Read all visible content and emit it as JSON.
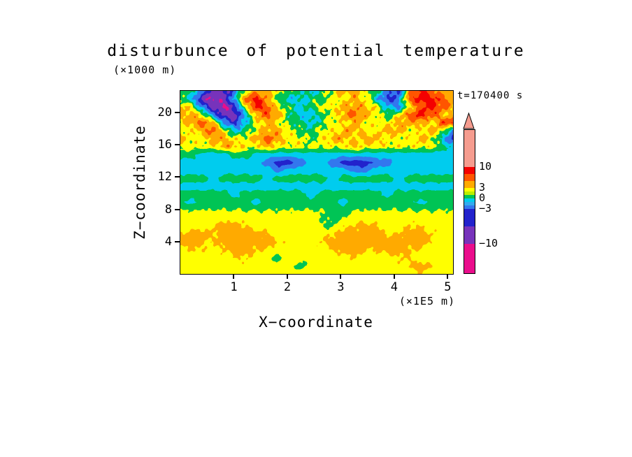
{
  "chart_data": {
    "type": "heatmap",
    "title": "disturbunce of potential temperature",
    "annotation": "t=170400 s",
    "xlabel": "X−coordinate",
    "x_unit_label": "(×1E5 m)",
    "ylabel": "Z−coordinate",
    "y_unit_label": "(×1000 m)",
    "x_ticks": [
      1,
      2,
      3,
      4,
      5
    ],
    "y_ticks": [
      4,
      8,
      12,
      16,
      20
    ],
    "x_range": [
      0,
      5.1
    ],
    "y_range": [
      0,
      22.7
    ],
    "legend_position": "right-colorbar",
    "grid": false,
    "levels": [
      -10,
      -7,
      -5,
      -3,
      -1,
      1,
      3,
      5,
      7,
      10
    ],
    "level_colors": [
      "#EA0D8C",
      "#7733BB",
      "#2222CC",
      "#3377EE",
      "#00CCEE",
      "#00C455",
      "#FFFF00",
      "#FFAA00",
      "#FF5500",
      "#F40000",
      "#F59C8F"
    ],
    "grid_order": "rows listed from z_max (top) to z_min (bottom), 26 columns spanning x_range",
    "values": [
      [
        0,
        0,
        -4,
        -8,
        -8,
        -4,
        2,
        4,
        4,
        2,
        0,
        0,
        -2,
        0,
        2,
        4,
        4,
        2,
        0,
        -4,
        -6,
        4,
        8,
        6,
        4,
        4
      ],
      [
        0,
        -2,
        -8,
        -11,
        -8,
        -2,
        6,
        8,
        4,
        0,
        -2,
        -2,
        0,
        0,
        2,
        2,
        4,
        2,
        -2,
        -6,
        -4,
        6,
        8,
        8,
        6,
        4
      ],
      [
        4,
        2,
        -4,
        -8,
        -11,
        -6,
        2,
        8,
        6,
        2,
        0,
        -2,
        0,
        2,
        2,
        4,
        4,
        4,
        2,
        -2,
        -4,
        2,
        6,
        8,
        6,
        4
      ],
      [
        4,
        4,
        2,
        -4,
        -8,
        -8,
        -2,
        4,
        6,
        4,
        0,
        -2,
        -2,
        0,
        2,
        4,
        6,
        4,
        2,
        0,
        2,
        6,
        8,
        6,
        4,
        2
      ],
      [
        2,
        4,
        6,
        4,
        -4,
        -6,
        -2,
        2,
        4,
        2,
        0,
        0,
        -2,
        0,
        2,
        2,
        4,
        2,
        2,
        2,
        4,
        4,
        4,
        2,
        6,
        8
      ],
      [
        2,
        2,
        4,
        6,
        2,
        -2,
        0,
        2,
        4,
        4,
        2,
        0,
        0,
        2,
        2,
        4,
        4,
        2,
        2,
        4,
        4,
        2,
        2,
        4,
        2,
        -4
      ],
      [
        4,
        2,
        2,
        4,
        4,
        2,
        2,
        4,
        6,
        4,
        2,
        2,
        0,
        2,
        4,
        4,
        2,
        4,
        4,
        2,
        2,
        2,
        4,
        2,
        -2,
        -6
      ],
      [
        2,
        2,
        2,
        2,
        4,
        4,
        2,
        2,
        4,
        2,
        2,
        2,
        2,
        2,
        2,
        2,
        4,
        2,
        2,
        2,
        2,
        2,
        2,
        2,
        0,
        -2
      ],
      [
        0,
        0,
        -2,
        -2,
        -2,
        0,
        0,
        -2,
        -2,
        -2,
        -2,
        -2,
        -2,
        -2,
        -2,
        -2,
        -2,
        -2,
        -2,
        -2,
        -2,
        -2,
        -2,
        -2,
        -2,
        -2
      ],
      [
        -2,
        -2,
        -2,
        -2,
        -2,
        -2,
        -2,
        -2,
        -4,
        -6,
        -6,
        -4,
        -2,
        -2,
        -4,
        -6,
        -6,
        -6,
        -4,
        -4,
        -2,
        -2,
        -2,
        -2,
        -2,
        -2
      ],
      [
        -2,
        -2,
        -2,
        -2,
        -2,
        -2,
        -2,
        -2,
        -2,
        -4,
        -2,
        -2,
        -2,
        -2,
        -2,
        -2,
        -4,
        -4,
        -2,
        -2,
        -2,
        -2,
        -2,
        -2,
        -2,
        -2
      ],
      [
        0,
        0,
        0,
        -2,
        0,
        0,
        0,
        0,
        -2,
        0,
        0,
        0,
        0,
        0,
        -2,
        0,
        0,
        0,
        0,
        0,
        -2,
        0,
        0,
        0,
        0,
        0
      ],
      [
        -2,
        -2,
        -2,
        -2,
        -2,
        -2,
        -2,
        -2,
        -2,
        -2,
        -2,
        -2,
        -2,
        -2,
        -2,
        -2,
        -2,
        -2,
        -2,
        -2,
        -2,
        -2,
        -2,
        -2,
        -2,
        -2
      ],
      [
        0,
        0,
        0,
        0,
        0,
        -2,
        0,
        0,
        0,
        0,
        0,
        0,
        -2,
        0,
        0,
        0,
        0,
        0,
        0,
        -2,
        0,
        0,
        0,
        0,
        0,
        0
      ],
      [
        0,
        -2,
        0,
        0,
        0,
        0,
        0,
        -2,
        0,
        0,
        0,
        0,
        0,
        0,
        0,
        -2,
        0,
        0,
        0,
        0,
        0,
        0,
        -2,
        0,
        0,
        0
      ],
      [
        1,
        1,
        1,
        1,
        1,
        1,
        1,
        1,
        1,
        1,
        1,
        1,
        1,
        1,
        0,
        0,
        1,
        1,
        1,
        1,
        1,
        1,
        1,
        1,
        1,
        1
      ],
      [
        2,
        2,
        2,
        2,
        2,
        2,
        2,
        2,
        2,
        2,
        2,
        2,
        2,
        1,
        0,
        1,
        2,
        2,
        2,
        2,
        2,
        2,
        2,
        2,
        2,
        2
      ],
      [
        2,
        2,
        2,
        3,
        4,
        4,
        3,
        2,
        2,
        2,
        2,
        2,
        2,
        1,
        1,
        3,
        3,
        4,
        3,
        2,
        2,
        3,
        3,
        2,
        2,
        2
      ],
      [
        3,
        4,
        4,
        3,
        4,
        4,
        4,
        4,
        3,
        2,
        2,
        2,
        2,
        2,
        3,
        4,
        4,
        4,
        4,
        3,
        3,
        4,
        4,
        3,
        2,
        2
      ],
      [
        4,
        4,
        3,
        3,
        4,
        4,
        4,
        4,
        4,
        3,
        2,
        2,
        2,
        3,
        4,
        4,
        4,
        4,
        4,
        4,
        4,
        4,
        4,
        3,
        2,
        2
      ],
      [
        2,
        3,
        3,
        2,
        3,
        4,
        4,
        3,
        3,
        2,
        2,
        2,
        2,
        2,
        3,
        4,
        4,
        3,
        3,
        4,
        4,
        3,
        3,
        2,
        2,
        2
      ],
      [
        2,
        2,
        2,
        2,
        2,
        3,
        3,
        2,
        2,
        0,
        2,
        2,
        2,
        2,
        2,
        2,
        3,
        2,
        2,
        2,
        3,
        3,
        2,
        2,
        2,
        2
      ],
      [
        2,
        2,
        2,
        2,
        2,
        2,
        2,
        2,
        2,
        2,
        2,
        0,
        2,
        2,
        2,
        2,
        2,
        2,
        2,
        2,
        2,
        3,
        4,
        3,
        2,
        2
      ],
      [
        2,
        2,
        2,
        2,
        2,
        2,
        2,
        2,
        2,
        2,
        2,
        2,
        2,
        2,
        2,
        2,
        2,
        2,
        2,
        2,
        2,
        2,
        3,
        2,
        2,
        2
      ]
    ]
  },
  "colorbar": {
    "arrow_color": "#F59C8F",
    "segments": [
      {
        "color": "#F59C8F",
        "h": 53
      },
      {
        "color": "#F40000",
        "h": 10
      },
      {
        "color": "#FF5500",
        "h": 10
      },
      {
        "color": "#FFAA00",
        "h": 10
      },
      {
        "color": "#FFFF00",
        "h": 5
      },
      {
        "color": "#BBEE00",
        "h": 5
      },
      {
        "color": "#00C455",
        "h": 5
      },
      {
        "color": "#00CCEE",
        "h": 5
      },
      {
        "color": "#33AAEE",
        "h": 5
      },
      {
        "color": "#3377EE",
        "h": 5
      },
      {
        "color": "#2222CC",
        "h": 25
      },
      {
        "color": "#7733BB",
        "h": 25
      },
      {
        "color": "#EA0D8C",
        "h": 42
      }
    ],
    "labels": [
      {
        "text": "10",
        "y": 53
      },
      {
        "text": "3",
        "y": 83
      },
      {
        "text": "0",
        "y": 98
      },
      {
        "text": "−3",
        "y": 113
      },
      {
        "text": "−10",
        "y": 163
      }
    ]
  }
}
